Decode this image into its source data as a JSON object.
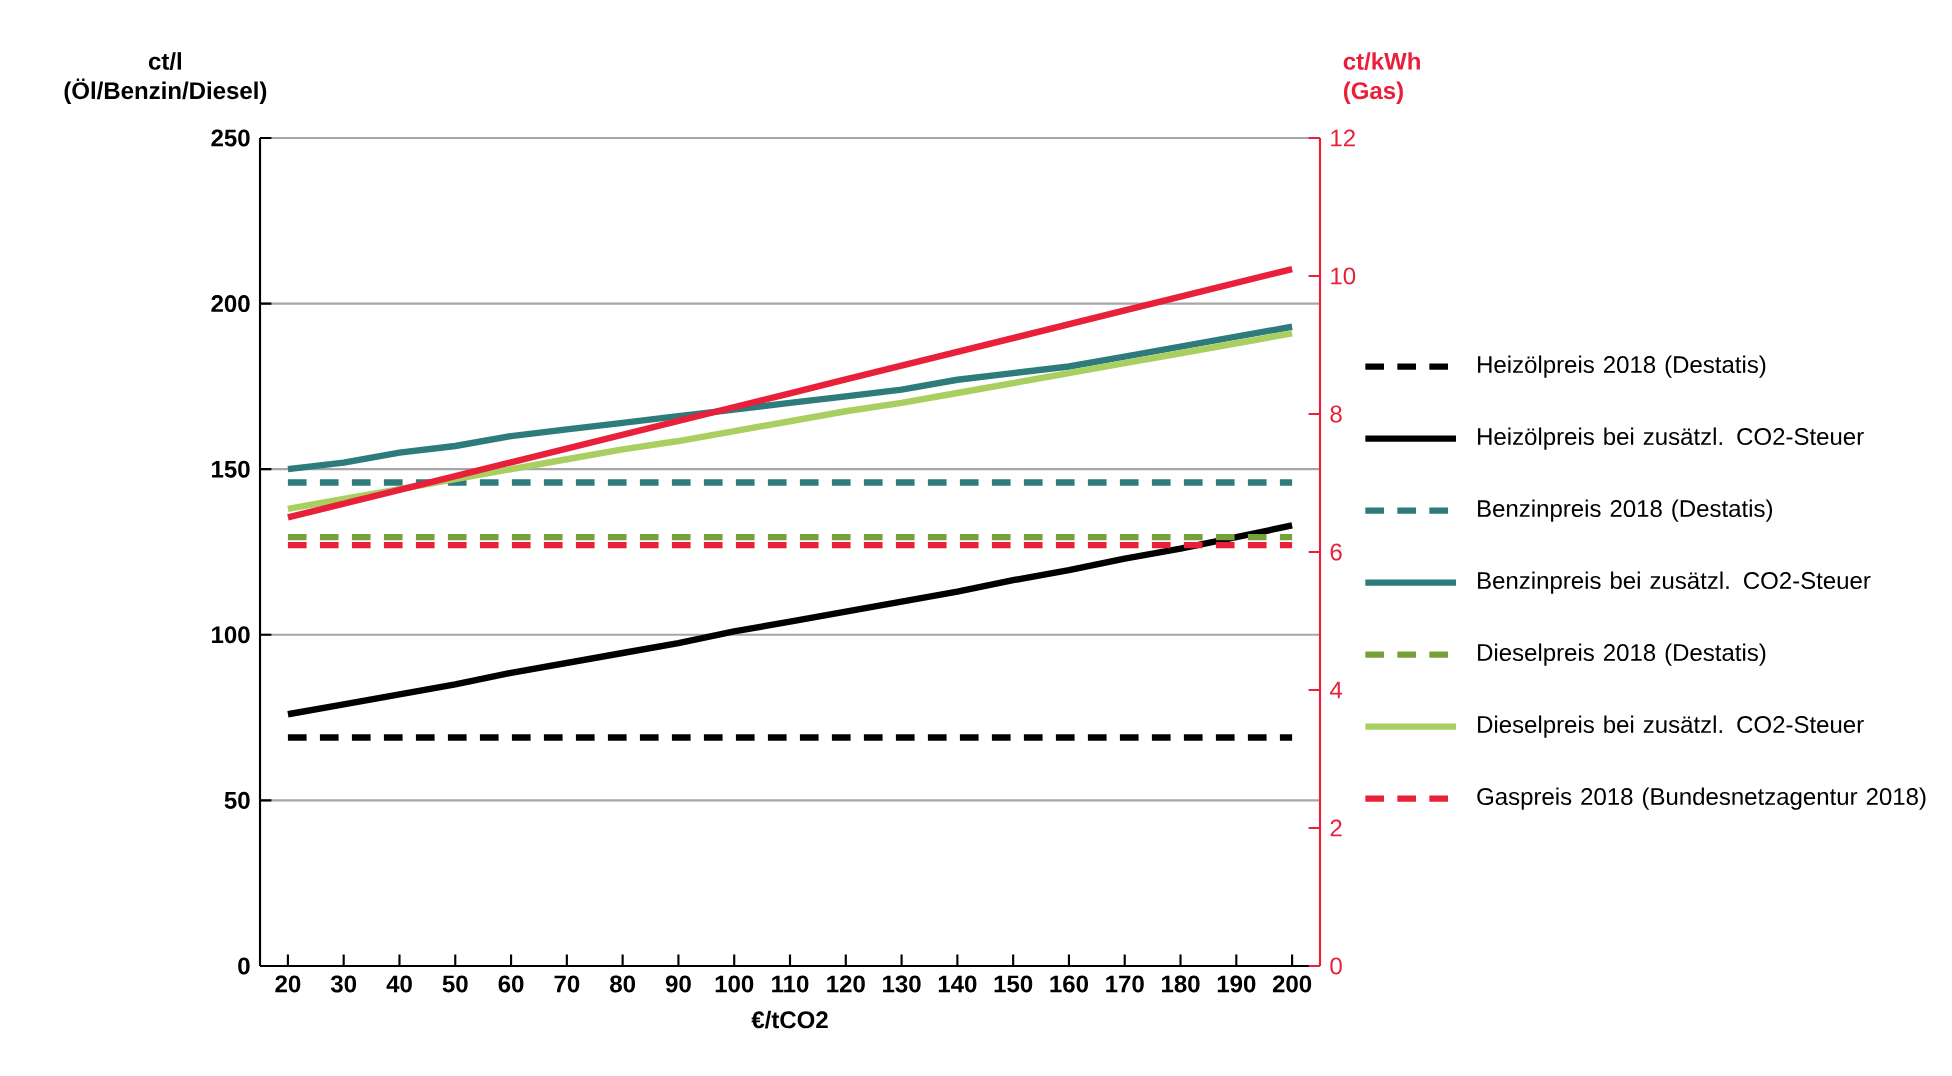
{
  "chart_data": {
    "type": "line",
    "xlabel": "€/tCO2",
    "ylabel": "ct/l (Öl/Benzin/Diesel)",
    "y2label": "ct/kWh (Gas)",
    "categories": [
      "20",
      "30",
      "40",
      "50",
      "60",
      "70",
      "80",
      "90",
      "100",
      "110",
      "120",
      "130",
      "140",
      "150",
      "160",
      "170",
      "180",
      "190",
      "200"
    ],
    "ylim": [
      0,
      250
    ],
    "yticks": [
      0,
      50,
      100,
      150,
      200,
      250
    ],
    "y2lim": [
      0,
      12
    ],
    "y2ticks": [
      0,
      2,
      4,
      6,
      8,
      10,
      12
    ],
    "grid": "y",
    "legend": "right",
    "series": [
      {
        "name": "Heizölpreis 2018 (Destatis)",
        "color": "#000000",
        "line_style": "dashed",
        "values": [
          69,
          69,
          69,
          69,
          69,
          69,
          69,
          69,
          69,
          69,
          69,
          69,
          69,
          69,
          69,
          69,
          69,
          69,
          69
        ]
      },
      {
        "name": "Heizölpreis bei zusätzl. CO2-Steuer",
        "color": "#000000",
        "line_style": "solid",
        "values": [
          76,
          79,
          82,
          85,
          88.5,
          91.5,
          94.5,
          97.5,
          101,
          104,
          107,
          110,
          113,
          116.5,
          119.5,
          123,
          126,
          129.5,
          133
        ]
      },
      {
        "name": "Benzinpreis 2018 (Destatis)",
        "color": "#2e7b7b",
        "line_style": "dashed",
        "values": [
          146,
          146,
          146,
          146,
          146,
          146,
          146,
          146,
          146,
          146,
          146,
          146,
          146,
          146,
          146,
          146,
          146,
          146,
          146
        ]
      },
      {
        "name": "Benzinpreis bei zusätzl. CO2-Steuer",
        "color": "#2e7b7b",
        "line_style": "solid",
        "values": [
          150,
          152,
          155,
          157,
          160,
          162,
          164,
          166,
          168,
          170,
          172,
          174,
          177,
          179,
          181,
          184,
          187,
          190,
          193
        ]
      },
      {
        "name": "Dieselpreis 2018 (Destatis)",
        "color": "#77a03a",
        "line_style": "dashed",
        "values": [
          129.5,
          129.5,
          129.5,
          129.5,
          129.5,
          129.5,
          129.5,
          129.5,
          129.5,
          129.5,
          129.5,
          129.5,
          129.5,
          129.5,
          129.5,
          129.5,
          129.5,
          129.5,
          129.5
        ]
      },
      {
        "name": "Dieselpreis bei zusätzl. CO2-Steuer",
        "color": "#a8cf5f",
        "line_style": "solid",
        "values": [
          138,
          141,
          144,
          147,
          150,
          153,
          156,
          158.5,
          161.5,
          164.5,
          167.5,
          170,
          173,
          176,
          179,
          182,
          185,
          188,
          191
        ]
      },
      {
        "name": "Gaspreis 2018 (Bundesnetzagentur 2018)",
        "color": "#e8203a",
        "line_style": "dashed",
        "axis": "y2",
        "values": [
          6.1,
          6.1,
          6.1,
          6.1,
          6.1,
          6.1,
          6.1,
          6.1,
          6.1,
          6.1,
          6.1,
          6.1,
          6.1,
          6.1,
          6.1,
          6.1,
          6.1,
          6.1,
          6.1
        ]
      },
      {
        "color": "#e8203a",
        "line_style": "solid",
        "axis": "y2",
        "values": [
          6.5,
          6.7,
          6.9,
          7.1,
          7.3,
          7.5,
          7.7,
          7.9,
          8.1,
          8.3,
          8.5,
          8.7,
          8.9,
          9.1,
          9.3,
          9.5,
          9.7,
          9.9,
          10.1
        ]
      }
    ]
  }
}
